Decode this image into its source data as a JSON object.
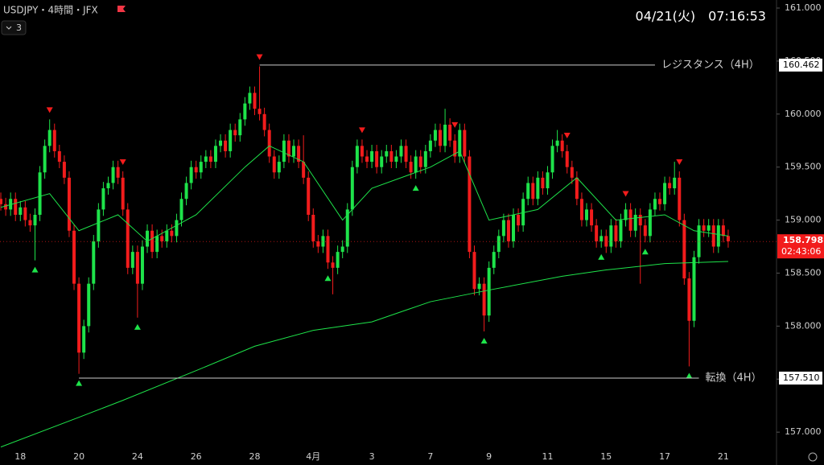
{
  "header": {
    "symbol": "USDJPY・4時間・JFX",
    "collapse": "3",
    "datetime": "04/21(火)　07:16:53"
  },
  "chart_data": {
    "type": "candlestick",
    "bull_color": "#1ee34a",
    "bear_color": "#f21c1c",
    "ylim": [
      156.69,
      161.076
    ],
    "yticks": [
      {
        "value": 157,
        "label": "157.000"
      },
      {
        "value": 157.5,
        "label": "157.500"
      },
      {
        "value": 158,
        "label": "158.000"
      },
      {
        "value": 158.5,
        "label": "158.500"
      },
      {
        "value": 159,
        "label": "159.000"
      },
      {
        "value": 159.5,
        "label": "159.500"
      },
      {
        "value": 160,
        "label": "160.000"
      },
      {
        "value": 160.5,
        "label": "160.500"
      },
      {
        "value": 161,
        "label": "161.000"
      }
    ],
    "xlim": [
      -0.17,
      158.9
    ],
    "xticks": [
      {
        "value": 4,
        "label": "18"
      },
      {
        "value": 16,
        "label": "20"
      },
      {
        "value": 28,
        "label": "24"
      },
      {
        "value": 40,
        "label": "26"
      },
      {
        "value": 52,
        "label": "28"
      },
      {
        "value": 64,
        "label": "4月"
      },
      {
        "value": 76,
        "label": "3"
      },
      {
        "value": 88,
        "label": "7"
      },
      {
        "value": 100,
        "label": "9"
      },
      {
        "value": 112,
        "label": "11"
      },
      {
        "value": 124,
        "label": "15"
      },
      {
        "value": 136,
        "label": "17"
      },
      {
        "value": 148,
        "label": "21"
      }
    ],
    "open": [
      159.2,
      159.15,
      159.1,
      159.2,
      159.05,
      159.12,
      159.0,
      158.95,
      159.05,
      159.45,
      159.7,
      159.85,
      159.65,
      159.55,
      159.4,
      158.9,
      158.4,
      157.75,
      158.0,
      158.4,
      158.8,
      159.1,
      159.3,
      159.35,
      159.5,
      159.4,
      159.1,
      158.55,
      158.7,
      158.4,
      158.75,
      158.9,
      158.7,
      158.85,
      158.8,
      158.9,
      158.85,
      159.0,
      159.2,
      159.35,
      159.5,
      159.45,
      159.55,
      159.6,
      159.55,
      159.7,
      159.75,
      159.65,
      159.85,
      159.8,
      159.95,
      160.1,
      160.2,
      160.05,
      160.0,
      159.85,
      159.6,
      159.45,
      159.55,
      159.75,
      159.6,
      159.7,
      159.55,
      159.4,
      159.05,
      158.8,
      158.75,
      158.85,
      158.6,
      158.55,
      158.7,
      158.75,
      159.1,
      159.5,
      159.7,
      159.6,
      159.55,
      159.65,
      159.5,
      159.6,
      159.65,
      159.55,
      159.6,
      159.7,
      159.55,
      159.45,
      159.6,
      159.5,
      159.65,
      159.75,
      159.85,
      159.7,
      159.9,
      159.75,
      159.6,
      159.85,
      159.6,
      158.7,
      158.35,
      158.4,
      158.1,
      158.55,
      158.7,
      158.85,
      159.0,
      158.8,
      159.05,
      158.95,
      159.2,
      159.35,
      159.2,
      159.4,
      159.3,
      159.45,
      159.7,
      159.75,
      159.65,
      159.5,
      159.4,
      159.2,
      159.0,
      159.1,
      158.95,
      158.8,
      158.85,
      158.75,
      158.95,
      158.8,
      159.0,
      159.1,
      158.9,
      159.05,
      158.95,
      158.85,
      159.1,
      159.2,
      159.15,
      159.35,
      159.3,
      159.4,
      159.0,
      158.45,
      158.05,
      158.65,
      158.95,
      158.9,
      158.95,
      158.75,
      158.95,
      158.85
    ],
    "high": [
      159.26,
      159.21,
      159.26,
      159.26,
      159.18,
      159.18,
      159.06,
      159.11,
      159.51,
      159.76,
      159.95,
      159.91,
      159.71,
      159.61,
      159.46,
      158.96,
      158.46,
      158.06,
      158.46,
      158.86,
      159.16,
      159.36,
      159.41,
      159.56,
      159.56,
      159.46,
      159.16,
      158.76,
      158.76,
      158.81,
      158.96,
      158.96,
      158.91,
      158.91,
      158.96,
      158.96,
      159.06,
      159.26,
      159.41,
      159.56,
      159.56,
      159.61,
      159.66,
      159.66,
      159.76,
      159.81,
      159.81,
      159.91,
      159.91,
      160.01,
      160.16,
      160.26,
      160.26,
      160.45,
      160.06,
      159.91,
      159.66,
      159.61,
      159.81,
      159.81,
      159.76,
      159.76,
      159.8,
      159.46,
      159.11,
      158.86,
      158.91,
      158.91,
      158.66,
      158.76,
      158.81,
      159.16,
      159.56,
      159.76,
      159.76,
      159.66,
      159.71,
      159.71,
      159.66,
      159.71,
      159.71,
      159.66,
      159.76,
      159.76,
      159.61,
      159.66,
      159.66,
      159.71,
      159.81,
      159.91,
      159.91,
      160.05,
      159.96,
      159.81,
      159.91,
      159.91,
      159.66,
      158.76,
      158.46,
      158.46,
      158.61,
      158.76,
      158.91,
      159.06,
      159.06,
      159.11,
      159.11,
      159.26,
      159.41,
      159.41,
      159.46,
      159.46,
      159.51,
      159.76,
      159.85,
      159.81,
      159.71,
      159.56,
      159.46,
      159.26,
      159.16,
      159.16,
      159.01,
      158.91,
      158.91,
      159.01,
      159.01,
      159.06,
      159.16,
      159.16,
      159.11,
      159.11,
      159.01,
      159.16,
      159.26,
      159.26,
      159.41,
      159.41,
      159.55,
      159.46,
      159.06,
      158.51,
      158.71,
      159.01,
      159.01,
      159.01,
      159.01,
      159.01,
      159.01,
      158.91
    ],
    "low": [
      159.09,
      159.04,
      159.04,
      158.99,
      158.99,
      158.94,
      158.89,
      158.62,
      158.99,
      159.39,
      159.64,
      159.59,
      159.49,
      159.34,
      158.84,
      158.34,
      157.55,
      157.69,
      157.94,
      158.34,
      158.74,
      159.04,
      159.24,
      159.29,
      159.34,
      159.04,
      158.49,
      158.49,
      158.08,
      158.34,
      158.69,
      158.64,
      158.64,
      158.74,
      158.74,
      158.79,
      158.79,
      158.94,
      159.14,
      159.29,
      159.39,
      159.39,
      159.49,
      159.49,
      159.49,
      159.64,
      159.59,
      159.59,
      159.74,
      159.74,
      159.89,
      160.04,
      159.99,
      159.94,
      159.79,
      159.54,
      159.39,
      159.39,
      159.49,
      159.54,
      159.54,
      159.49,
      159.34,
      158.99,
      158.74,
      158.69,
      158.69,
      158.54,
      158.3,
      158.49,
      158.64,
      158.69,
      159.04,
      159.44,
      159.54,
      159.49,
      159.49,
      159.44,
      159.44,
      159.54,
      159.49,
      159.49,
      159.54,
      159.49,
      159.39,
      159.39,
      159.44,
      159.44,
      159.59,
      159.69,
      159.64,
      159.64,
      159.69,
      159.54,
      159.54,
      159.54,
      158.64,
      158.29,
      158.29,
      157.95,
      158.04,
      158.49,
      158.64,
      158.79,
      158.74,
      158.74,
      158.89,
      158.89,
      159.14,
      159.14,
      159.14,
      159.24,
      159.24,
      159.39,
      159.64,
      159.59,
      159.44,
      159.34,
      159.14,
      158.94,
      158.94,
      158.89,
      158.74,
      158.74,
      158.69,
      158.69,
      158.74,
      158.74,
      158.94,
      158.84,
      158.84,
      158.4,
      158.79,
      158.79,
      159.04,
      159.09,
      159.09,
      159.24,
      159.24,
      158.94,
      158.39,
      157.62,
      157.99,
      158.59,
      158.84,
      158.84,
      158.69,
      158.69,
      158.79,
      158.74
    ],
    "close": [
      159.15,
      159.1,
      159.2,
      159.05,
      159.12,
      159.0,
      158.95,
      159.05,
      159.45,
      159.7,
      159.85,
      159.65,
      159.55,
      159.4,
      158.9,
      158.4,
      157.75,
      158.0,
      158.4,
      158.8,
      159.1,
      159.3,
      159.35,
      159.5,
      159.4,
      159.1,
      158.55,
      158.7,
      158.4,
      158.75,
      158.9,
      158.7,
      158.85,
      158.8,
      158.9,
      158.85,
      159.0,
      159.2,
      159.35,
      159.5,
      159.45,
      159.55,
      159.6,
      159.55,
      159.7,
      159.75,
      159.65,
      159.85,
      159.8,
      159.95,
      160.1,
      160.2,
      160.05,
      160.0,
      159.85,
      159.6,
      159.45,
      159.55,
      159.75,
      159.6,
      159.7,
      159.55,
      159.4,
      159.05,
      158.8,
      158.75,
      158.85,
      158.6,
      158.55,
      158.7,
      158.75,
      159.1,
      159.5,
      159.7,
      159.6,
      159.55,
      159.65,
      159.5,
      159.6,
      159.65,
      159.55,
      159.6,
      159.7,
      159.55,
      159.45,
      159.6,
      159.5,
      159.65,
      159.75,
      159.85,
      159.7,
      159.9,
      159.75,
      159.6,
      159.85,
      159.6,
      158.7,
      158.35,
      158.4,
      158.1,
      158.55,
      158.7,
      158.85,
      159.0,
      158.8,
      159.05,
      158.95,
      159.2,
      159.35,
      159.2,
      159.4,
      159.3,
      159.45,
      159.7,
      159.75,
      159.65,
      159.5,
      159.4,
      159.2,
      159.0,
      159.1,
      158.95,
      158.8,
      158.85,
      158.75,
      158.95,
      158.8,
      159.0,
      159.1,
      158.9,
      159.05,
      158.95,
      158.85,
      159.1,
      159.2,
      159.15,
      159.35,
      159.3,
      159.4,
      159.0,
      158.45,
      158.05,
      158.65,
      158.95,
      158.9,
      158.95,
      158.75,
      158.95,
      158.85,
      158.8
    ],
    "lines": [
      {
        "color": "#1ee34a",
        "x": [
          0,
          10,
          16,
          24,
          30,
          40,
          50,
          55,
          62,
          70,
          76,
          88,
          94,
          100,
          110,
          118,
          126,
          136,
          142,
          149
        ],
        "values": [
          159.12,
          159.25,
          158.9,
          159.05,
          158.8,
          159.05,
          159.5,
          159.7,
          159.55,
          159.0,
          159.3,
          159.5,
          159.65,
          159.0,
          159.1,
          159.4,
          159.0,
          159.05,
          158.9,
          158.85
        ]
      },
      {
        "color": "#1ee34a",
        "x": [
          0,
          16,
          25,
          40,
          52,
          64,
          76,
          88,
          100,
          115,
          124,
          136,
          149
        ],
        "values": [
          156.86,
          157.14,
          157.3,
          157.58,
          157.81,
          157.96,
          158.04,
          158.23,
          158.34,
          158.47,
          158.53,
          158.59,
          158.61
        ]
      }
    ],
    "buy_signals": [
      7,
      16,
      28,
      67,
      85,
      99,
      123,
      132,
      141
    ],
    "sell_signals": [
      10,
      25,
      53,
      74,
      93,
      116,
      128,
      139
    ],
    "levels": [
      {
        "name": "レジスタンス（4H）",
        "price": 160.462,
        "from": 53,
        "to": 134
      },
      {
        "name": "転換（4H）",
        "price": 157.51,
        "price_label": "157.510",
        "from": 16,
        "to": 143
      }
    ],
    "last_price": 158.798,
    "countdown": "02:43:06"
  }
}
